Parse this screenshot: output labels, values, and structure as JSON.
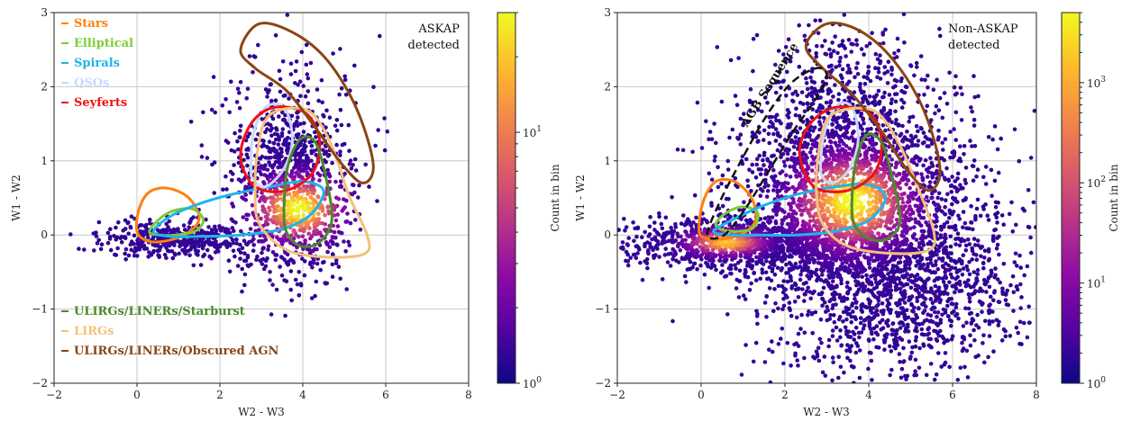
{
  "chart_data": [
    {
      "type": "scatter",
      "xlabel": "W2 - W3",
      "ylabel": "W1 - W2",
      "xlim": [
        -2,
        8
      ],
      "ylim": [
        -2,
        3
      ],
      "xticks": [
        -2,
        0,
        2,
        4,
        6,
        8
      ],
      "yticks": [
        -2,
        -1,
        0,
        1,
        2,
        3
      ],
      "grid": true,
      "annotation_lines": [
        "ASKAP",
        "detected"
      ],
      "colorbar": {
        "label": "Count in bin",
        "scale": "log",
        "range": [
          1,
          30
        ],
        "ticks": [
          {
            "base": "10",
            "exp": "0",
            "value": 1
          },
          {
            "base": "10",
            "exp": "1",
            "value": 10
          }
        ],
        "colors": [
          "#0d0887",
          "#5302a3",
          "#8b0aa5",
          "#b83289",
          "#db5c68",
          "#f48849",
          "#febc2a",
          "#f0f921"
        ]
      },
      "legend_top": [
        {
          "name": "Stars",
          "color": "#ff7f0e"
        },
        {
          "name": "Elliptical",
          "color": "#7ccd32"
        },
        {
          "name": "Spirals",
          "color": "#1fb4e8"
        },
        {
          "name": "QSOs",
          "color": "#c8d8ff"
        },
        {
          "name": "Seyferts",
          "color": "#ee1111"
        }
      ],
      "legend_bottom": [
        {
          "name": "ULIRGs/LINERs/Starburst",
          "color": "#4a8a2a"
        },
        {
          "name": "LIRGs",
          "color": "#f2c27a"
        },
        {
          "name": "ULIRGs/LINERs/Obscured AGN",
          "color": "#8b4513"
        }
      ],
      "density_model": {
        "spread_x": 0.9,
        "spread_y": 0.4,
        "points": 1500
      },
      "contours": [
        {
          "name": "Stars",
          "color": "#ff7f0e",
          "points": [
            [
              0.0,
              0.05
            ],
            [
              0.05,
              0.35
            ],
            [
              0.3,
              0.58
            ],
            [
              0.75,
              0.63
            ],
            [
              1.25,
              0.5
            ],
            [
              1.5,
              0.22
            ],
            [
              1.2,
              0.02
            ],
            [
              0.7,
              -0.08
            ],
            [
              0.25,
              -0.08
            ],
            [
              0.0,
              0.05
            ]
          ]
        },
        {
          "name": "Elliptical",
          "color": "#7ccd32",
          "points": [
            [
              0.3,
              0.05
            ],
            [
              0.55,
              0.22
            ],
            [
              0.9,
              0.33
            ],
            [
              1.35,
              0.35
            ],
            [
              1.6,
              0.2
            ],
            [
              1.4,
              0.05
            ],
            [
              0.95,
              0.0
            ],
            [
              0.5,
              0.0
            ],
            [
              0.3,
              0.05
            ]
          ]
        },
        {
          "name": "Spirals",
          "color": "#1fb4e8",
          "points": [
            [
              0.4,
              0.05
            ],
            [
              0.8,
              0.25
            ],
            [
              1.5,
              0.42
            ],
            [
              2.3,
              0.55
            ],
            [
              3.2,
              0.65
            ],
            [
              4.0,
              0.72
            ],
            [
              4.5,
              0.6
            ],
            [
              4.2,
              0.28
            ],
            [
              3.5,
              0.08
            ],
            [
              2.5,
              0.0
            ],
            [
              1.5,
              -0.02
            ],
            [
              0.8,
              -0.02
            ],
            [
              0.4,
              0.05
            ]
          ]
        },
        {
          "name": "QSOs",
          "color": "#c8d8ff",
          "points": [
            [
              2.75,
              0.9
            ],
            [
              2.8,
              1.35
            ],
            [
              3.1,
              1.72
            ],
            [
              3.55,
              1.72
            ],
            [
              3.75,
              1.3
            ],
            [
              3.55,
              0.9
            ],
            [
              3.1,
              0.65
            ],
            [
              2.8,
              0.75
            ],
            [
              2.75,
              0.9
            ]
          ]
        },
        {
          "name": "Seyferts",
          "color": "#ee1111",
          "points": [
            [
              2.5,
              1.05
            ],
            [
              2.75,
              1.5
            ],
            [
              3.3,
              1.72
            ],
            [
              4.05,
              1.65
            ],
            [
              4.4,
              1.3
            ],
            [
              4.25,
              0.85
            ],
            [
              3.6,
              0.6
            ],
            [
              2.85,
              0.65
            ],
            [
              2.5,
              1.05
            ]
          ]
        },
        {
          "name": "ULIRGs/LINERs/Starburst",
          "color": "#4a8a2a",
          "points": [
            [
              3.55,
              0.45
            ],
            [
              3.65,
              0.95
            ],
            [
              3.95,
              1.3
            ],
            [
              4.3,
              1.25
            ],
            [
              4.55,
              0.8
            ],
            [
              4.7,
              0.2
            ],
            [
              4.4,
              -0.1
            ],
            [
              3.95,
              -0.15
            ],
            [
              3.6,
              0.05
            ],
            [
              3.55,
              0.45
            ]
          ]
        },
        {
          "name": "LIRGs",
          "color": "#f2c27a",
          "points": [
            [
              2.9,
              1.1
            ],
            [
              3.1,
              1.55
            ],
            [
              3.55,
              1.7
            ],
            [
              4.2,
              1.65
            ],
            [
              4.7,
              1.2
            ],
            [
              5.1,
              0.55
            ],
            [
              5.55,
              0.0
            ],
            [
              5.5,
              -0.25
            ],
            [
              4.6,
              -0.3
            ],
            [
              3.6,
              -0.2
            ],
            [
              2.95,
              0.15
            ],
            [
              2.85,
              0.6
            ],
            [
              2.9,
              1.1
            ]
          ]
        },
        {
          "name": "ULIRGs/LINERs/Obscured AGN",
          "color": "#8b4513",
          "points": [
            [
              2.5,
              2.5
            ],
            [
              2.95,
              2.85
            ],
            [
              3.8,
              2.72
            ],
            [
              4.6,
              2.35
            ],
            [
              5.3,
              1.7
            ],
            [
              5.7,
              0.95
            ],
            [
              5.45,
              0.7
            ],
            [
              4.95,
              0.95
            ],
            [
              4.3,
              1.45
            ],
            [
              3.6,
              1.95
            ],
            [
              2.85,
              2.25
            ],
            [
              2.5,
              2.5
            ]
          ]
        }
      ]
    },
    {
      "type": "scatter",
      "xlabel": "W2 - W3",
      "ylabel": "W1 - W2",
      "xlim": [
        -2,
        8
      ],
      "ylim": [
        -2,
        3
      ],
      "xticks": [
        -2,
        0,
        2,
        4,
        6,
        8
      ],
      "yticks": [
        -2,
        -1,
        0,
        1,
        2,
        3
      ],
      "grid": true,
      "annotation_lines": [
        "Non-ASKAP",
        "detected"
      ],
      "sequence_label": "AGB Sequence",
      "sequence_points": [
        [
          0.15,
          0.0
        ],
        [
          0.45,
          0.45
        ],
        [
          1.0,
          1.05
        ],
        [
          1.55,
          1.6
        ],
        [
          2.15,
          2.05
        ],
        [
          2.75,
          2.25
        ],
        [
          3.0,
          2.15
        ],
        [
          2.75,
          1.85
        ],
        [
          2.2,
          1.4
        ],
        [
          1.6,
          0.85
        ],
        [
          1.05,
          0.35
        ],
        [
          0.55,
          0.0
        ],
        [
          0.15,
          0.0
        ]
      ],
      "colorbar": {
        "label": "Count in bin",
        "scale": "log",
        "range": [
          1,
          5000
        ],
        "ticks": [
          {
            "base": "10",
            "exp": "0",
            "value": 1
          },
          {
            "base": "10",
            "exp": "1",
            "value": 10
          },
          {
            "base": "10",
            "exp": "2",
            "value": 100
          },
          {
            "base": "10",
            "exp": "3",
            "value": 1000
          }
        ],
        "colors": [
          "#0d0887",
          "#5302a3",
          "#8b0aa5",
          "#b83289",
          "#db5c68",
          "#f48849",
          "#febc2a",
          "#f0f921"
        ]
      },
      "density_model": {
        "spread_x": 1.6,
        "spread_y": 0.65,
        "points": 5000
      },
      "contours": [
        {
          "name": "Stars",
          "color": "#ff7f0e",
          "points": [
            [
              -0.05,
              0.05
            ],
            [
              0.05,
              0.45
            ],
            [
              0.35,
              0.72
            ],
            [
              0.8,
              0.72
            ],
            [
              1.2,
              0.5
            ],
            [
              1.3,
              0.2
            ],
            [
              1.0,
              0.02
            ],
            [
              0.55,
              -0.05
            ],
            [
              0.15,
              -0.05
            ],
            [
              -0.05,
              0.05
            ]
          ]
        },
        {
          "name": "Elliptical",
          "color": "#7ccd32",
          "points": [
            [
              0.35,
              0.15
            ],
            [
              0.6,
              0.3
            ],
            [
              1.0,
              0.38
            ],
            [
              1.35,
              0.3
            ],
            [
              1.25,
              0.1
            ],
            [
              0.9,
              0.05
            ],
            [
              0.5,
              0.07
            ],
            [
              0.35,
              0.15
            ]
          ]
        },
        {
          "name": "Spirals",
          "color": "#1fb4e8",
          "points": [
            [
              0.3,
              0.05
            ],
            [
              0.8,
              0.22
            ],
            [
              1.5,
              0.4
            ],
            [
              2.3,
              0.55
            ],
            [
              3.2,
              0.65
            ],
            [
              4.0,
              0.68
            ],
            [
              4.4,
              0.5
            ],
            [
              4.0,
              0.2
            ],
            [
              3.2,
              0.05
            ],
            [
              2.3,
              0.0
            ],
            [
              1.4,
              0.0
            ],
            [
              0.7,
              0.0
            ],
            [
              0.3,
              0.05
            ]
          ]
        },
        {
          "name": "QSOs",
          "color": "#c8d8ff",
          "points": [
            [
              2.85,
              0.95
            ],
            [
              2.95,
              1.4
            ],
            [
              3.25,
              1.75
            ],
            [
              3.6,
              1.72
            ],
            [
              3.75,
              1.3
            ],
            [
              3.55,
              0.9
            ],
            [
              3.15,
              0.7
            ],
            [
              2.9,
              0.78
            ],
            [
              2.85,
              0.95
            ]
          ]
        },
        {
          "name": "Seyferts",
          "color": "#ee1111",
          "points": [
            [
              2.35,
              1.1
            ],
            [
              2.6,
              1.5
            ],
            [
              3.2,
              1.72
            ],
            [
              4.0,
              1.65
            ],
            [
              4.3,
              1.3
            ],
            [
              4.15,
              0.85
            ],
            [
              3.5,
              0.6
            ],
            [
              2.7,
              0.65
            ],
            [
              2.35,
              1.1
            ]
          ]
        },
        {
          "name": "ULIRGs/LINERs/Starburst",
          "color": "#4a8a2a",
          "points": [
            [
              3.6,
              0.5
            ],
            [
              3.7,
              1.0
            ],
            [
              3.95,
              1.35
            ],
            [
              4.3,
              1.25
            ],
            [
              4.55,
              0.8
            ],
            [
              4.75,
              0.2
            ],
            [
              4.45,
              -0.05
            ],
            [
              4.0,
              -0.05
            ],
            [
              3.65,
              0.15
            ],
            [
              3.6,
              0.5
            ]
          ]
        },
        {
          "name": "LIRGs",
          "color": "#f2c27a",
          "points": [
            [
              2.8,
              1.1
            ],
            [
              3.0,
              1.55
            ],
            [
              3.5,
              1.7
            ],
            [
              4.2,
              1.65
            ],
            [
              4.75,
              1.2
            ],
            [
              5.2,
              0.6
            ],
            [
              5.55,
              0.05
            ],
            [
              5.45,
              -0.2
            ],
            [
              4.6,
              -0.25
            ],
            [
              3.5,
              -0.15
            ],
            [
              2.9,
              0.15
            ],
            [
              2.75,
              0.6
            ],
            [
              2.8,
              1.1
            ]
          ]
        },
        {
          "name": "ULIRGs/LINERs/Obscured AGN",
          "color": "#8b4513",
          "points": [
            [
              2.5,
              2.55
            ],
            [
              3.0,
              2.85
            ],
            [
              3.8,
              2.75
            ],
            [
              4.6,
              2.35
            ],
            [
              5.3,
              1.7
            ],
            [
              5.7,
              0.9
            ],
            [
              5.45,
              0.6
            ],
            [
              4.95,
              0.85
            ],
            [
              4.3,
              1.4
            ],
            [
              3.6,
              1.9
            ],
            [
              2.9,
              2.25
            ],
            [
              2.5,
              2.55
            ]
          ]
        }
      ]
    }
  ]
}
